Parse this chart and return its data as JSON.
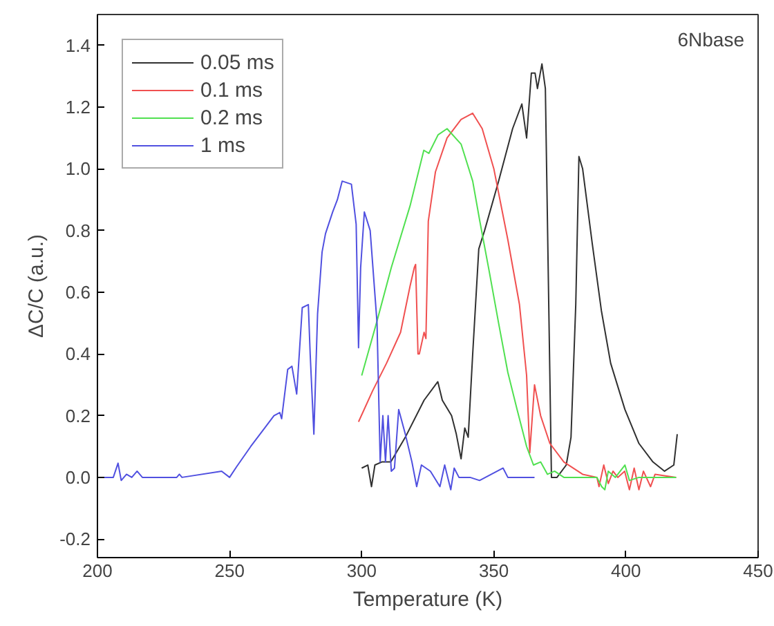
{
  "chart_data": {
    "type": "line",
    "xlabel": "Temperature (K)",
    "ylabel": "ΔC/C (a.u.)",
    "xlim": [
      200,
      450
    ],
    "ylim": [
      -0.26,
      1.5
    ],
    "xticks": [
      200,
      250,
      300,
      350,
      400,
      450
    ],
    "yticks": [
      {
        "value": -0.2,
        "label": "-0.2"
      },
      {
        "value": 0,
        "label": "0.0"
      },
      {
        "value": 0.2,
        "label": "0.2"
      },
      {
        "value": 0.4,
        "label": "0.4"
      },
      {
        "value": 0.6,
        "label": "0.6"
      },
      {
        "value": 0.8,
        "label": "0.8"
      },
      {
        "value": 1,
        "label": "1.0"
      },
      {
        "value": 1.2,
        "label": "1.2"
      },
      {
        "value": 1.4,
        "label": "1.4"
      }
    ],
    "grid": false,
    "legend": "top left",
    "annotations": [
      "6Nbase"
    ],
    "series": [
      {
        "name": "0.05 ms",
        "color": "#303030",
        "x": [
          300,
          302.3,
          303.7,
          305,
          307.6,
          311,
          316.5,
          323.6,
          328.8,
          330.5,
          334,
          335.8,
          337.6,
          339,
          340.3,
          342,
          344.3,
          346.5,
          351.8,
          357.1,
          360.6,
          362.4,
          364.2,
          365.6,
          366.5,
          368.2,
          369.5,
          371.8,
          373.9,
          377.4,
          379.2,
          381,
          382.2,
          383.6,
          387.2,
          390.7,
          394.2,
          399.6,
          404.9,
          410.2,
          414.6,
          418.1,
          419.4
        ],
        "values": [
          0.03,
          0.04,
          -0.03,
          0.04,
          0.05,
          0.05,
          0.13,
          0.25,
          0.31,
          0.25,
          0.2,
          0.14,
          0.06,
          0.16,
          0.13,
          0.4,
          0.74,
          0.8,
          0.96,
          1.13,
          1.21,
          1.1,
          1.31,
          1.31,
          1.26,
          1.34,
          1.26,
          0.0,
          0.0,
          0.04,
          0.13,
          0.56,
          1.04,
          1.0,
          0.76,
          0.54,
          0.37,
          0.22,
          0.11,
          0.05,
          0.02,
          0.04,
          0.14
        ]
      },
      {
        "name": "0.1 ms",
        "color": "#f05050",
        "x": [
          298.8,
          304.1,
          309.4,
          314.7,
          318.3,
          319.9,
          320.4,
          321.3,
          321.8,
          323.6,
          324.3,
          325.2,
          327.9,
          332.3,
          337.6,
          342,
          345.6,
          350,
          355.3,
          359.7,
          362.4,
          363.6,
          365.4,
          367.7,
          371.2,
          376.5,
          383.6,
          389,
          389.8,
          391.6,
          393.3,
          395.1,
          396.9,
          399.5,
          401.3,
          403.1,
          404.9,
          406.6,
          409.3,
          411,
          419
        ],
        "values": [
          0.18,
          0.28,
          0.37,
          0.47,
          0.62,
          0.68,
          0.69,
          0.4,
          0.4,
          0.47,
          0.45,
          0.83,
          0.99,
          1.1,
          1.16,
          1.18,
          1.13,
          1.0,
          0.77,
          0.56,
          0.33,
          0.08,
          0.3,
          0.2,
          0.11,
          0.05,
          0.01,
          0.0,
          -0.03,
          0.04,
          -0.02,
          0.02,
          0.0,
          0.02,
          -0.04,
          0.03,
          -0.04,
          0.02,
          -0.03,
          0.01,
          0.0
        ]
      },
      {
        "name": "0.2 ms",
        "color": "#50e050",
        "x": [
          300,
          305.9,
          311.2,
          318.3,
          323.5,
          325.4,
          328.9,
          332.3,
          337.6,
          342,
          344.7,
          348.2,
          351.8,
          355.3,
          358.8,
          362.4,
          365,
          367.7,
          370.3,
          373,
          376.5,
          383.6,
          389,
          390.8,
          392,
          393.3,
          396,
          399.6,
          401.3,
          404.9,
          419
        ],
        "values": [
          0.33,
          0.51,
          0.68,
          0.88,
          1.06,
          1.05,
          1.11,
          1.13,
          1.08,
          0.96,
          0.83,
          0.67,
          0.5,
          0.34,
          0.22,
          0.1,
          0.04,
          0.05,
          0.01,
          0.02,
          0.0,
          0.0,
          0.0,
          -0.03,
          -0.04,
          0.02,
          0.0,
          0.04,
          -0.01,
          0.0,
          0.0
        ]
      },
      {
        "name": "1 ms",
        "color": "#5050e0",
        "x": [
          201,
          206,
          207.8,
          209,
          211,
          213,
          215,
          217,
          230,
          231,
          232,
          247,
          250,
          252.7,
          258,
          263.3,
          266.8,
          269,
          269.7,
          272,
          273.6,
          275.4,
          277.5,
          279.8,
          280.5,
          281.9,
          283.3,
          285,
          286.3,
          289,
          290.8,
          292.6,
          296.1,
          297.9,
          298.8,
          299.6,
          301,
          303.2,
          305.8,
          307,
          308,
          309,
          310,
          311.2,
          312.4,
          314,
          316.5,
          319,
          320.8,
          322.6,
          326,
          329.6,
          331.4,
          333.7,
          335,
          336.8,
          341,
          344.6,
          353.5,
          355.3,
          358.8,
          365.4
        ],
        "values": [
          0.0,
          0.0,
          0.046,
          -0.01,
          0.01,
          0.0,
          0.02,
          0.0,
          0.0,
          0.01,
          0.0,
          0.02,
          0.0,
          0.035,
          0.1,
          0.16,
          0.2,
          0.21,
          0.19,
          0.35,
          0.36,
          0.27,
          0.55,
          0.56,
          0.4,
          0.14,
          0.53,
          0.73,
          0.79,
          0.86,
          0.9,
          0.96,
          0.95,
          0.82,
          0.42,
          0.68,
          0.86,
          0.8,
          0.5,
          0.05,
          0.2,
          0.05,
          0.2,
          0.02,
          0.03,
          0.22,
          0.14,
          0.05,
          -0.03,
          0.04,
          0.02,
          -0.03,
          0.04,
          -0.04,
          0.03,
          0.0,
          0.0,
          -0.01,
          0.03,
          0.0,
          0.0,
          0.0
        ]
      }
    ]
  }
}
